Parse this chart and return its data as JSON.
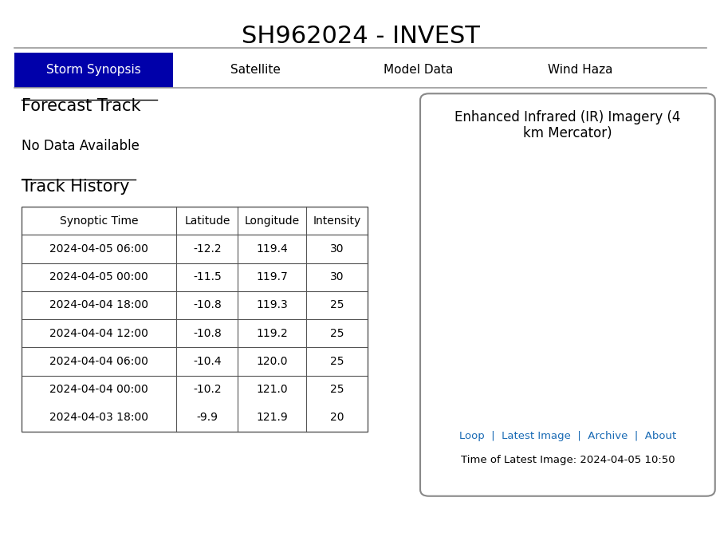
{
  "title": "SH962024 - INVEST",
  "title_fontsize": 22,
  "nav_items": [
    "Storm Synopsis",
    "Satellite",
    "Model Data",
    "Wind Haza"
  ],
  "nav_active_idx": 0,
  "nav_active_color": "#0000AA",
  "nav_active_text_color": "#ffffff",
  "nav_inactive_text_color": "#000000",
  "section1_heading": "Forecast Track",
  "section1_text": "No Data Available",
  "section2_heading": "Track History",
  "table_headers": [
    "Synoptic Time",
    "Latitude",
    "Longitude",
    "Intensity"
  ],
  "table_rows": [
    [
      "2024-04-05 06:00",
      "-12.2",
      "119.4",
      "30"
    ],
    [
      "2024-04-05 00:00",
      "-11.5",
      "119.7",
      "30"
    ],
    [
      "2024-04-04 18:00",
      "-10.8",
      "119.3",
      "25"
    ],
    [
      "2024-04-04 12:00",
      "-10.8",
      "119.2",
      "25"
    ],
    [
      "2024-04-04 06:00",
      "-10.4",
      "120.0",
      "25"
    ],
    [
      "2024-04-04 00:00",
      "-10.2",
      "121.0",
      "25"
    ],
    [
      "2024-04-03 18:00",
      "-9.9",
      "121.9",
      "20"
    ]
  ],
  "ir_box_title": "Enhanced Infrared (IR) Imagery (4\nkm Mercator)",
  "ir_links_text": "Loop  |  Latest Image  |  Archive  |  About",
  "ir_time": "Time of Latest Image: 2024-04-05 10:50",
  "ir_link_color": "#1a6bb5",
  "bg_color": "#ffffff",
  "separator_color": "#999999",
  "table_border_color": "#555555",
  "heading_underline_color": "#000000",
  "text_color": "#000000"
}
